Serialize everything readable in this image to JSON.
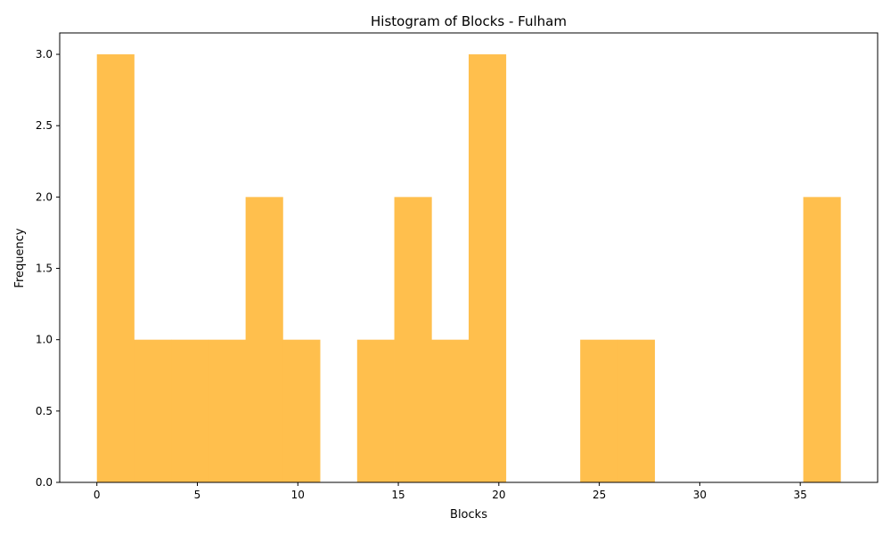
{
  "chart_data": {
    "type": "bar",
    "title": "Histogram of Blocks - Fulham",
    "xlabel": "Blocks",
    "ylabel": "Frequency",
    "bin_edges": [
      0,
      1.85,
      3.7,
      5.55,
      7.4,
      9.25,
      11.1,
      12.95,
      14.8,
      16.65,
      18.5,
      20.35,
      22.2,
      24.05,
      25.9,
      27.75,
      29.6,
      31.45,
      33.3,
      35.15,
      37.0
    ],
    "values": [
      3,
      1,
      1,
      1,
      2,
      1,
      0,
      1,
      2,
      1,
      3,
      0,
      0,
      1,
      1,
      0,
      0,
      0,
      0,
      2
    ],
    "xlim": [
      -1.85,
      38.85
    ],
    "ylim": [
      0,
      3.15
    ],
    "x_ticks": [
      0,
      5,
      10,
      15,
      20,
      25,
      30,
      35
    ],
    "x_tick_labels": [
      "0",
      "5",
      "10",
      "15",
      "20",
      "25",
      "30",
      "35"
    ],
    "y_ticks": [
      0,
      0.5,
      1,
      1.5,
      2,
      2.5,
      3
    ],
    "y_tick_labels": [
      "0.0",
      "0.5",
      "1.0",
      "1.5",
      "2.0",
      "2.5",
      "3.0"
    ],
    "bar_color": "#ffbf4d",
    "axis_color": "#000000",
    "grid": false,
    "legend": "none"
  }
}
